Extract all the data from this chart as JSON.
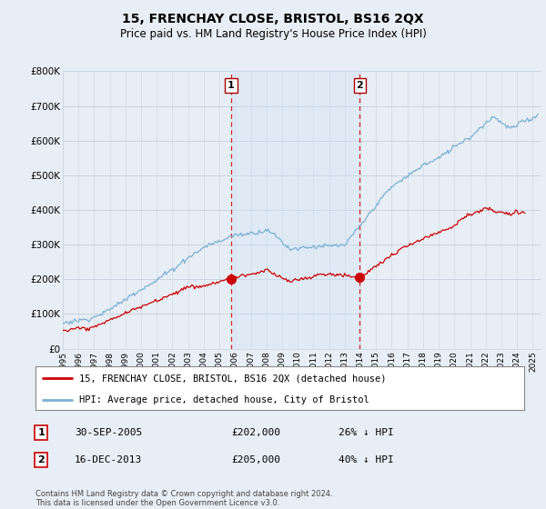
{
  "title": "15, FRENCHAY CLOSE, BRISTOL, BS16 2QX",
  "subtitle": "Price paid vs. HM Land Registry's House Price Index (HPI)",
  "ylabel_ticks": [
    "£0",
    "£100K",
    "£200K",
    "£300K",
    "£400K",
    "£500K",
    "£600K",
    "£700K",
    "£800K"
  ],
  "ytick_values": [
    0,
    100000,
    200000,
    300000,
    400000,
    500000,
    600000,
    700000,
    800000
  ],
  "ylim": [
    0,
    800000
  ],
  "xlim_start": 1995.0,
  "xlim_end": 2025.5,
  "bg_color": "#e8eef5",
  "plot_bg_color": "#e8eef5",
  "grid_color": "#c8d4e0",
  "shade_color": "#d0e4f7",
  "red_color": "#cc0000",
  "blue_color": "#7ab0d4",
  "transaction1": {
    "date_x": 2005.75,
    "price": 202000,
    "label": "1"
  },
  "transaction2": {
    "date_x": 2013.96,
    "price": 205000,
    "label": "2"
  },
  "legend_line1": "15, FRENCHAY CLOSE, BRISTOL, BS16 2QX (detached house)",
  "legend_line2": "HPI: Average price, detached house, City of Bristol",
  "annot1_num": "1",
  "annot1_date": "30-SEP-2005",
  "annot1_price": "£202,000",
  "annot1_hpi": "26% ↓ HPI",
  "annot2_num": "2",
  "annot2_date": "16-DEC-2013",
  "annot2_price": "£205,000",
  "annot2_hpi": "40% ↓ HPI",
  "footnote": "Contains HM Land Registry data © Crown copyright and database right 2024.\nThis data is licensed under the Open Government Licence v3.0."
}
